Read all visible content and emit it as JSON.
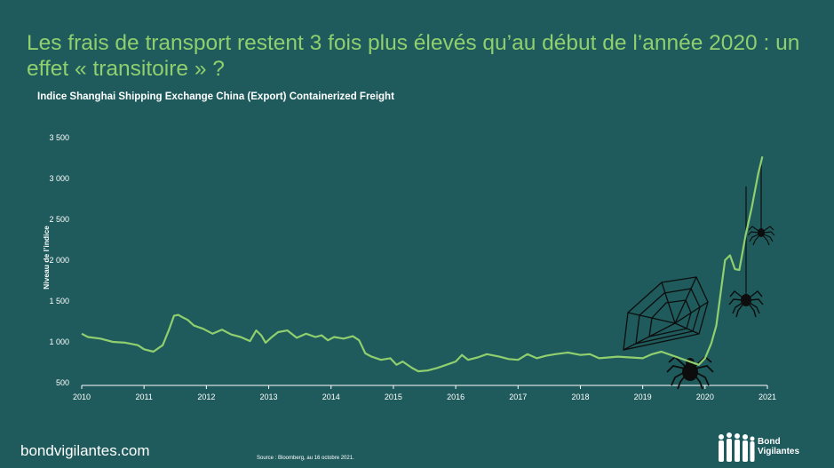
{
  "header": {
    "title": "Les frais de transport restent 3 fois plus élevés qu’au début de l’année 2020 : un effet « transitoire » ?",
    "subtitle": "Indice Shanghai Shipping Exchange China (Export) Containerized Freight"
  },
  "footer": {
    "site": "bondvigilantes.com",
    "source": "Source : Bloomberg, au 16 octobre 2021.",
    "logo_line1": "Bond",
    "logo_line2": "Vigilantes"
  },
  "colors": {
    "background": "#1f5b5c",
    "title": "#8fcf6e",
    "line": "#8fcf6e",
    "text": "#ffffff"
  },
  "icons": [
    "spider-web-icon",
    "spider-icon",
    "vigilantes-logo-icon"
  ],
  "chart_data": {
    "type": "line",
    "ylabel": "Niveau de l’indice",
    "xlabel": "",
    "ylim": [
      500,
      3500
    ],
    "xlim": [
      2010,
      2021
    ],
    "yticks": [
      500,
      1000,
      1500,
      2000,
      2500,
      3000,
      3500
    ],
    "ytick_labels": [
      "500",
      "1 000",
      "1 500",
      "2 000",
      "2 500",
      "3 000",
      "3 500"
    ],
    "xticks": [
      2010,
      2011,
      2012,
      2013,
      2014,
      2015,
      2016,
      2017,
      2018,
      2019,
      2020,
      2021
    ],
    "xtick_labels": [
      "2010",
      "2011",
      "2012",
      "2013",
      "2014",
      "2015",
      "2016",
      "2017",
      "2018",
      "2019",
      "2020",
      "2021"
    ],
    "grid": false,
    "series": [
      {
        "x": [
          2010.0,
          2010.1,
          2010.3,
          2010.5,
          2010.7,
          2010.9,
          2011.0,
          2011.15,
          2011.3,
          2011.4,
          2011.48,
          2011.55,
          2011.62,
          2011.7,
          2011.8,
          2011.95,
          2012.1,
          2012.25,
          2012.4,
          2012.55,
          2012.7,
          2012.8,
          2012.88,
          2012.95,
          2013.05,
          2013.15,
          2013.3,
          2013.45,
          2013.6,
          2013.75,
          2013.85,
          2013.95,
          2014.05,
          2014.2,
          2014.35,
          2014.45,
          2014.55,
          2014.65,
          2014.8,
          2014.95,
          2015.05,
          2015.15,
          2015.3,
          2015.4,
          2015.55,
          2015.7,
          2015.85,
          2016.0,
          2016.1,
          2016.2,
          2016.35,
          2016.5,
          2016.7,
          2016.85,
          2017.0,
          2017.15,
          2017.3,
          2017.45,
          2017.6,
          2017.8,
          2018.0,
          2018.15,
          2018.3,
          2018.45,
          2018.6,
          2018.8,
          2019.0,
          2019.15,
          2019.3,
          2019.45,
          2019.6,
          2019.75,
          2019.9,
          2020.0,
          2020.1,
          2020.18,
          2020.25,
          2020.32,
          2020.4,
          2020.48,
          2020.55,
          2020.65,
          2020.75,
          2020.85,
          2020.92
        ],
        "values": [
          1100,
          1060,
          1040,
          1000,
          990,
          960,
          910,
          880,
          960,
          1150,
          1320,
          1330,
          1300,
          1270,
          1200,
          1160,
          1100,
          1150,
          1090,
          1060,
          1010,
          1140,
          1080,
          990,
          1060,
          1120,
          1140,
          1050,
          1100,
          1060,
          1080,
          1020,
          1060,
          1040,
          1070,
          1020,
          860,
          820,
          780,
          800,
          720,
          760,
          680,
          640,
          650,
          680,
          720,
          760,
          840,
          780,
          810,
          850,
          820,
          790,
          780,
          850,
          800,
          830,
          850,
          870,
          840,
          850,
          800,
          810,
          820,
          810,
          800,
          850,
          880,
          840,
          800,
          760,
          720,
          800,
          980,
          1200,
          1600,
          2000,
          2060,
          1890,
          1880,
          2300,
          2650,
          3050,
          3270
        ]
      }
    ]
  }
}
